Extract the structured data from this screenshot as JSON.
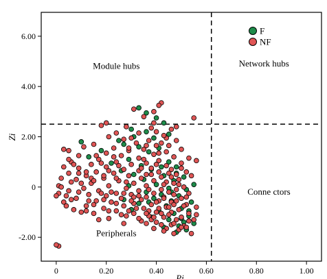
{
  "chart_data": {
    "type": "scatter",
    "title": "",
    "xlabel": "Pi",
    "ylabel": "Zi",
    "xlim": [
      -0.06,
      1.06
    ],
    "ylim": [
      -2.95,
      6.95
    ],
    "x_ticks": [
      0,
      0.2,
      0.4,
      0.6,
      0.8,
      1.0
    ],
    "x_tick_labels": [
      "0",
      "0.20",
      "0.40",
      "0.60",
      "0.80",
      "1.00"
    ],
    "y_ticks": [
      -2,
      0,
      2,
      4,
      6
    ],
    "y_tick_labels": [
      "-2.00",
      "0",
      "2.00",
      "4.00",
      "6.00"
    ],
    "threshold_lines": {
      "x": 0.62,
      "y": 2.5
    },
    "region_labels": [
      {
        "text": "Module hubs",
        "x": 0.24,
        "y": 4.7
      },
      {
        "text": "Network hubs",
        "x": 0.83,
        "y": 4.8
      },
      {
        "text": "Conne ctors",
        "x": 0.85,
        "y": -0.3
      },
      {
        "text": "Peripherals",
        "x": 0.24,
        "y": -1.95
      }
    ],
    "legend": {
      "position": "top-right",
      "entries": [
        "F",
        "NF"
      ]
    },
    "grid": false,
    "series": [
      {
        "name": "F",
        "color": "#1e8c4a",
        "points": [
          [
            0.33,
            3.15
          ],
          [
            0.36,
            2.95
          ],
          [
            0.4,
            2.75
          ],
          [
            0.43,
            2.55
          ],
          [
            0.3,
            2.3
          ],
          [
            0.36,
            2.2
          ],
          [
            0.45,
            2.1
          ],
          [
            0.31,
            2.0
          ],
          [
            0.39,
            1.95
          ],
          [
            0.25,
            1.85
          ],
          [
            0.1,
            1.8
          ],
          [
            0.27,
            1.7
          ],
          [
            0.33,
            1.6
          ],
          [
            0.41,
            1.55
          ],
          [
            0.18,
            1.45
          ],
          [
            0.37,
            1.4
          ],
          [
            0.13,
            1.2
          ],
          [
            0.29,
            1.1
          ],
          [
            0.45,
            1.0
          ],
          [
            0.22,
            0.95
          ],
          [
            0.34,
            0.85
          ],
          [
            0.48,
            0.8
          ],
          [
            0.38,
            0.7
          ],
          [
            0.26,
            0.65
          ],
          [
            0.31,
            0.5
          ],
          [
            0.43,
            0.45
          ],
          [
            0.51,
            0.4
          ],
          [
            0.35,
            0.3
          ],
          [
            0.47,
            0.25
          ],
          [
            0.4,
            0.1
          ],
          [
            0.29,
            0.05
          ],
          [
            0.45,
            -0.05
          ],
          [
            0.52,
            -0.1
          ],
          [
            0.36,
            -0.2
          ],
          [
            0.42,
            -0.3
          ],
          [
            0.49,
            -0.35
          ],
          [
            0.39,
            -0.45
          ],
          [
            0.46,
            -0.55
          ],
          [
            0.54,
            -0.6
          ],
          [
            0.33,
            -0.65
          ],
          [
            0.44,
            -0.75
          ],
          [
            0.5,
            -0.85
          ],
          [
            0.41,
            -0.95
          ],
          [
            0.47,
            -1.05
          ],
          [
            0.53,
            -1.15
          ],
          [
            0.38,
            -1.2
          ],
          [
            0.45,
            -1.3
          ],
          [
            0.51,
            -1.4
          ],
          [
            0.49,
            -1.55
          ],
          [
            0.43,
            -1.6
          ],
          [
            0.52,
            -1.7
          ],
          [
            0.48,
            -1.8
          ],
          [
            0.55,
            -1.45
          ],
          [
            0.3,
            -0.9
          ],
          [
            0.27,
            -0.5
          ],
          [
            0.55,
            0.1
          ],
          [
            0.5,
            -1.25
          ],
          [
            0.46,
            -0.2
          ],
          [
            0.42,
            0.8
          ],
          [
            0.37,
            -0.6
          ],
          [
            0.53,
            -0.95
          ],
          [
            0.48,
            0.55
          ]
        ]
      },
      {
        "name": "NF",
        "color": "#e05555",
        "points": [
          [
            0.42,
            3.35
          ],
          [
            0.41,
            3.25
          ],
          [
            0.31,
            3.1
          ],
          [
            0.39,
            3.0
          ],
          [
            0.35,
            2.8
          ],
          [
            0.48,
            2.4
          ],
          [
            0.38,
            2.35
          ],
          [
            0.4,
            2.2
          ],
          [
            0.2,
            2.55
          ],
          [
            0.18,
            2.45
          ],
          [
            0.28,
            2.4
          ],
          [
            0.46,
            2.3
          ],
          [
            0.33,
            2.15
          ],
          [
            0.21,
            2.0
          ],
          [
            0.44,
            1.95
          ],
          [
            0.27,
            1.9
          ],
          [
            0.37,
            1.85
          ],
          [
            0.42,
            1.75
          ],
          [
            0.32,
            1.75
          ],
          [
            0.15,
            1.7
          ],
          [
            0.4,
            1.65
          ],
          [
            0.11,
            1.6
          ],
          [
            0.23,
            1.55
          ],
          [
            0.35,
            1.5
          ],
          [
            0.03,
            1.5
          ],
          [
            0.05,
            1.45
          ],
          [
            0.29,
            1.45
          ],
          [
            0.44,
            1.4
          ],
          [
            0.2,
            1.35
          ],
          [
            0.39,
            1.3
          ],
          [
            0.09,
            1.25
          ],
          [
            0.26,
            1.25
          ],
          [
            0.47,
            1.2
          ],
          [
            0.33,
            1.15
          ],
          [
            0.17,
            1.1
          ],
          [
            0.41,
            1.05
          ],
          [
            0.06,
            1.0
          ],
          [
            0.24,
            1.0
          ],
          [
            0.36,
            0.95
          ],
          [
            0.5,
            0.95
          ],
          [
            0.14,
            0.9
          ],
          [
            0.3,
            0.9
          ],
          [
            0.44,
            0.85
          ],
          [
            0.56,
            1.05
          ],
          [
            0.2,
            0.8
          ],
          [
            0.38,
            0.75
          ],
          [
            0.09,
            0.75
          ],
          [
            0.27,
            0.7
          ],
          [
            0.46,
            0.7
          ],
          [
            0.33,
            0.65
          ],
          [
            0.16,
            0.6
          ],
          [
            0.41,
            0.6
          ],
          [
            0.52,
            0.6
          ],
          [
            0.05,
            0.55
          ],
          [
            0.23,
            0.55
          ],
          [
            0.36,
            0.5
          ],
          [
            0.48,
            0.5
          ],
          [
            0.12,
            0.45
          ],
          [
            0.29,
            0.45
          ],
          [
            0.42,
            0.4
          ],
          [
            0.19,
            0.35
          ],
          [
            0.34,
            0.35
          ],
          [
            0.49,
            0.3
          ],
          [
            0.08,
            0.3
          ],
          [
            0.25,
            0.25
          ],
          [
            0.39,
            0.25
          ],
          [
            0.44,
            0.2
          ],
          [
            0.14,
            0.15
          ],
          [
            0.31,
            0.15
          ],
          [
            0.47,
            0.15
          ],
          [
            0.01,
            0.05
          ],
          [
            0.21,
            0.05
          ],
          [
            0.36,
            0.05
          ],
          [
            0.51,
            0.0
          ],
          [
            0.11,
            -0.05
          ],
          [
            0.28,
            -0.05
          ],
          [
            0.42,
            -0.1
          ],
          [
            0.48,
            -0.1
          ],
          [
            0.05,
            -0.15
          ],
          [
            0.17,
            -0.15
          ],
          [
            0.33,
            -0.15
          ],
          [
            0.45,
            -0.2
          ],
          [
            0.24,
            -0.25
          ],
          [
            0.39,
            -0.25
          ],
          [
            0.53,
            -0.25
          ],
          [
            0.01,
            -0.25
          ],
          [
            0.13,
            -0.3
          ],
          [
            0.3,
            -0.3
          ],
          [
            0.47,
            -0.3
          ],
          [
            0.2,
            -0.35
          ],
          [
            0.36,
            -0.4
          ],
          [
            0.43,
            -0.4
          ],
          [
            0.08,
            -0.45
          ],
          [
            0.26,
            -0.45
          ],
          [
            0.5,
            -0.45
          ],
          [
            0.34,
            -0.5
          ],
          [
            0.16,
            -0.55
          ],
          [
            0.41,
            -0.55
          ],
          [
            0.46,
            -0.6
          ],
          [
            0.03,
            -0.6
          ],
          [
            0.22,
            -0.6
          ],
          [
            0.31,
            -0.65
          ],
          [
            0.38,
            -0.7
          ],
          [
            0.52,
            -0.7
          ],
          [
            0.12,
            -0.75
          ],
          [
            0.27,
            -0.75
          ],
          [
            0.44,
            -0.8
          ],
          [
            0.19,
            -0.85
          ],
          [
            0.35,
            -0.85
          ],
          [
            0.49,
            -0.9
          ],
          [
            0.07,
            -0.9
          ],
          [
            0.24,
            -0.95
          ],
          [
            0.4,
            -1.0
          ],
          [
            0.46,
            -1.0
          ],
          [
            0.15,
            -1.05
          ],
          [
            0.31,
            -1.05
          ],
          [
            0.53,
            -1.05
          ],
          [
            0.28,
            -1.15
          ],
          [
            0.37,
            -1.15
          ],
          [
            0.43,
            -1.2
          ],
          [
            0.21,
            -1.25
          ],
          [
            0.48,
            -1.3
          ],
          [
            0.34,
            -1.35
          ],
          [
            0.4,
            -1.4
          ],
          [
            0.27,
            -1.45
          ],
          [
            0.46,
            -1.5
          ],
          [
            0.17,
            -1.3
          ],
          [
            0.51,
            -1.55
          ],
          [
            0.44,
            -1.65
          ],
          [
            0.49,
            -1.7
          ],
          [
            0.54,
            -1.85
          ],
          [
            0.52,
            -1.6
          ],
          [
            0.47,
            -1.45
          ],
          [
            0.42,
            -1.5
          ],
          [
            0.38,
            -1.3
          ],
          [
            0.33,
            -1.25
          ],
          [
            0.5,
            -1.2
          ],
          [
            0.55,
            -1.3
          ],
          [
            0.45,
            -1.1
          ],
          [
            0.41,
            -0.85
          ],
          [
            0.37,
            -0.95
          ],
          [
            0.29,
            -0.95
          ],
          [
            0.24,
            -0.65
          ],
          [
            0.19,
            -0.5
          ],
          [
            0.1,
            -1.0
          ],
          [
            0.04,
            -0.75
          ],
          [
            0.0,
            -0.35
          ],
          [
            0.01,
            -2.35
          ],
          [
            0.0,
            -2.3
          ],
          [
            0.02,
            0.0
          ],
          [
            0.06,
            0.2
          ],
          [
            0.09,
            -0.2
          ],
          [
            0.12,
            0.6
          ],
          [
            0.15,
            -0.7
          ],
          [
            0.18,
            0.95
          ],
          [
            0.21,
            -0.95
          ],
          [
            0.23,
            1.2
          ],
          [
            0.26,
            -1.1
          ],
          [
            0.29,
            1.55
          ],
          [
            0.32,
            -0.85
          ],
          [
            0.35,
            1.1
          ],
          [
            0.37,
            -0.1
          ],
          [
            0.4,
            0.9
          ],
          [
            0.43,
            0.1
          ],
          [
            0.45,
            0.55
          ],
          [
            0.47,
            -0.7
          ],
          [
            0.5,
            0.75
          ],
          [
            0.52,
            -0.4
          ],
          [
            0.54,
            0.45
          ],
          [
            0.56,
            -0.8
          ],
          [
            0.49,
            0.1
          ],
          [
            0.46,
            0.4
          ],
          [
            0.43,
            -0.45
          ],
          [
            0.4,
            -0.6
          ],
          [
            0.38,
            0.5
          ],
          [
            0.36,
            -1.45
          ],
          [
            0.34,
            0.75
          ],
          [
            0.31,
            -0.4
          ],
          [
            0.28,
            0.2
          ],
          [
            0.25,
            0.85
          ],
          [
            0.22,
            -0.2
          ],
          [
            0.19,
            0.45
          ],
          [
            0.16,
            1.25
          ],
          [
            0.13,
            -0.55
          ],
          [
            0.1,
            0.15
          ],
          [
            0.07,
            0.9
          ],
          [
            0.04,
            -0.35
          ],
          [
            0.02,
            0.35
          ],
          [
            0.55,
            2.75
          ],
          [
            0.39,
            2.55
          ],
          [
            0.45,
            1.65
          ],
          [
            0.5,
            1.5
          ],
          [
            0.43,
            2.05
          ],
          [
            0.36,
            1.65
          ],
          [
            0.3,
            1.95
          ],
          [
            0.24,
            2.15
          ],
          [
            0.41,
            1.35
          ],
          [
            0.48,
            1.85
          ],
          [
            0.53,
            1.15
          ],
          [
            0.14,
            0.35
          ],
          [
            0.47,
            -1.85
          ],
          [
            0.43,
            -1.75
          ],
          [
            0.39,
            -1.65
          ],
          [
            0.5,
            -1.6
          ],
          [
            0.53,
            -1.35
          ],
          [
            0.56,
            -1.1
          ],
          [
            0.51,
            -0.75
          ],
          [
            0.48,
            -0.55
          ],
          [
            0.45,
            -0.8
          ],
          [
            0.42,
            -1.05
          ],
          [
            0.39,
            -1.2
          ],
          [
            0.36,
            -1.05
          ],
          [
            0.33,
            -0.35
          ],
          [
            0.3,
            -0.55
          ],
          [
            0.27,
            -0.25
          ],
          [
            0.24,
            0.35
          ],
          [
            0.21,
            0.65
          ],
          [
            0.18,
            -0.25
          ],
          [
            0.15,
            0.25
          ],
          [
            0.12,
            -0.95
          ],
          [
            0.09,
            0.55
          ],
          [
            0.06,
            -0.5
          ],
          [
            0.03,
            0.8
          ],
          [
            0.05,
            1.1
          ]
        ]
      }
    ]
  }
}
